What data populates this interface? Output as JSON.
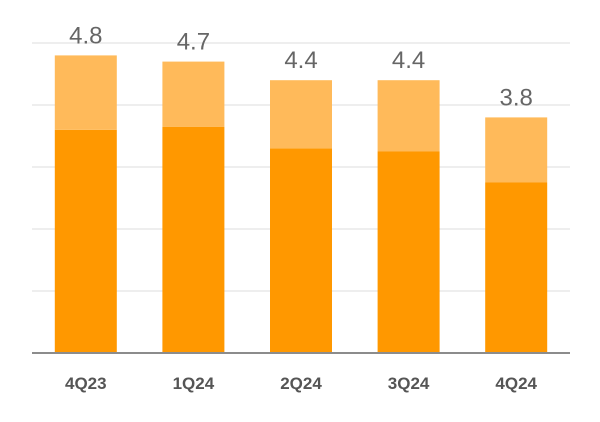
{
  "chart_data": {
    "type": "bar",
    "stacked": true,
    "categories": [
      "4Q23",
      "1Q24",
      "2Q24",
      "3Q24",
      "4Q24"
    ],
    "series": [
      {
        "color": "#ff9800",
        "values": [
          3.6,
          3.65,
          3.3,
          3.25,
          2.75
        ]
      },
      {
        "color": "#ffba5a",
        "values": [
          1.2,
          1.05,
          1.1,
          1.15,
          1.05
        ]
      }
    ],
    "totals": [
      "4.8",
      "4.7",
      "4.4",
      "4.4",
      "3.8"
    ],
    "ylim": [
      0,
      5.0
    ],
    "grid": true,
    "legend": "none",
    "title": "",
    "xlabel": "",
    "ylabel": ""
  }
}
